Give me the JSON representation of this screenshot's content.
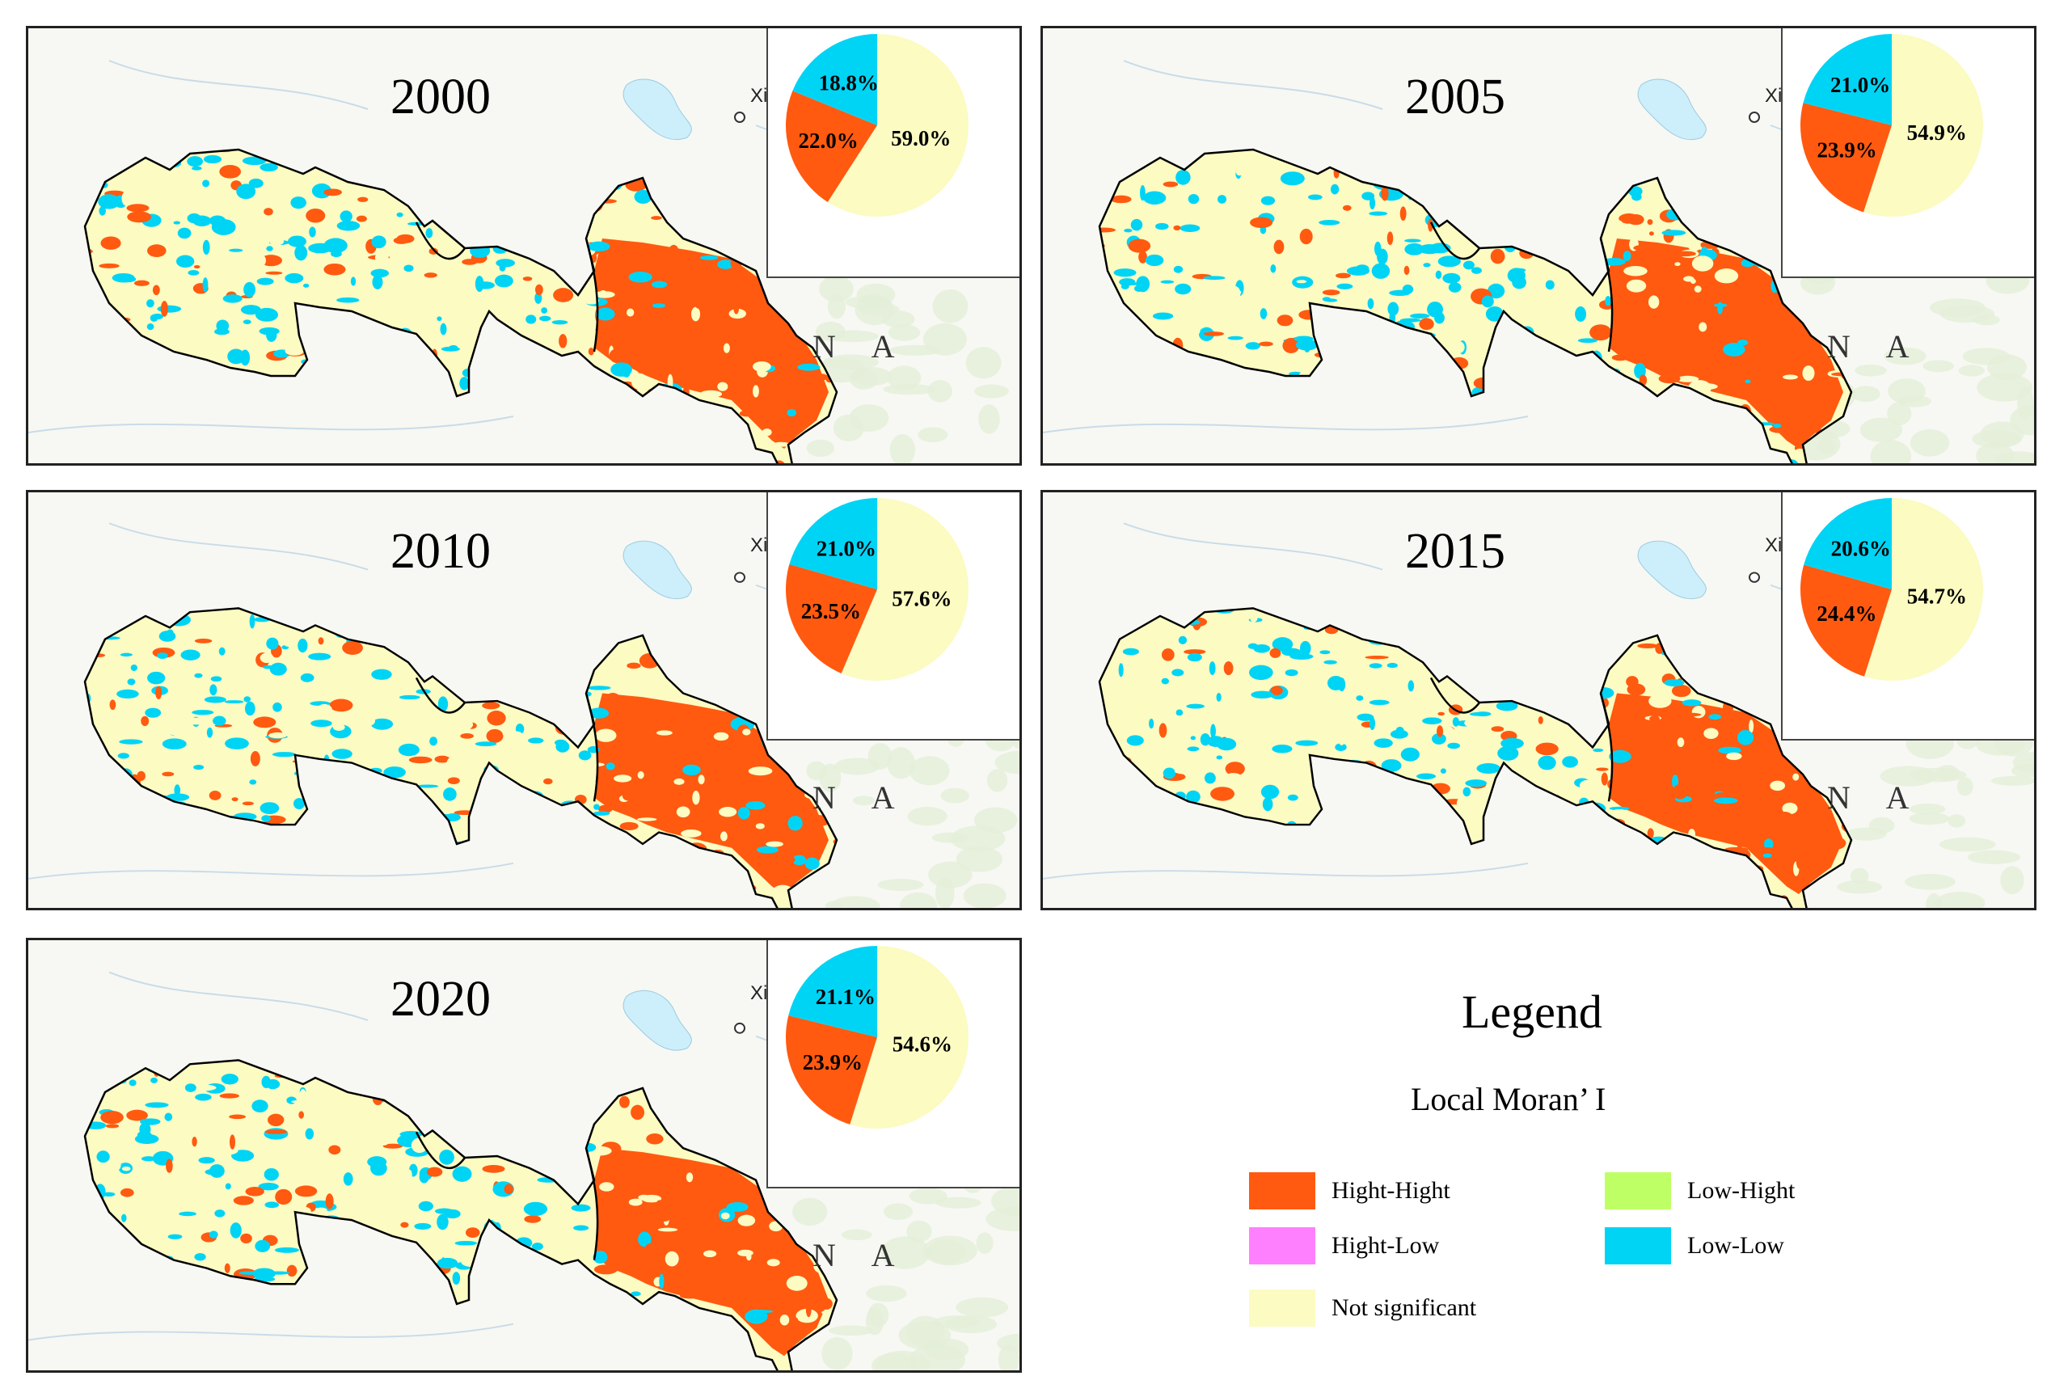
{
  "colors": {
    "hh": "#ff5a10",
    "hl": "#ff80ff",
    "lh": "#bfff66",
    "ll": "#00d4f5",
    "ns": "#fbfbc2",
    "water": "#cdeefb",
    "bg": "#f7f8f3"
  },
  "place_label": "Xini",
  "country_label": "N A",
  "panels": [
    {
      "year": "2000",
      "pie": [
        {
          "label": "59.0%",
          "value": 59.0,
          "cls": "ns"
        },
        {
          "label": "22.0%",
          "value": 22.0,
          "cls": "hh"
        },
        {
          "label": "18.8%",
          "value": 18.8,
          "cls": "ll"
        }
      ]
    },
    {
      "year": "2005",
      "pie": [
        {
          "label": "54.9%",
          "value": 54.9,
          "cls": "ns"
        },
        {
          "label": "23.9%",
          "value": 23.9,
          "cls": "hh"
        },
        {
          "label": "21.0%",
          "value": 21.0,
          "cls": "ll"
        }
      ]
    },
    {
      "year": "2010",
      "pie": [
        {
          "label": "57.6%",
          "value": 57.6,
          "cls": "ns"
        },
        {
          "label": "23.5%",
          "value": 23.5,
          "cls": "hh"
        },
        {
          "label": "21.0%",
          "value": 21.0,
          "cls": "ll"
        }
      ]
    },
    {
      "year": "2015",
      "pie": [
        {
          "label": "54.7%",
          "value": 54.7,
          "cls": "ns"
        },
        {
          "label": "24.4%",
          "value": 24.4,
          "cls": "hh"
        },
        {
          "label": "20.6%",
          "value": 20.6,
          "cls": "ll"
        }
      ]
    },
    {
      "year": "2020",
      "pie": [
        {
          "label": "54.6%",
          "value": 54.6,
          "cls": "ns"
        },
        {
          "label": "23.9%",
          "value": 23.9,
          "cls": "hh"
        },
        {
          "label": "21.1%",
          "value": 21.1,
          "cls": "ll"
        }
      ]
    }
  ],
  "legend": {
    "title": "Legend",
    "subtitle": "Local Moran’ I",
    "items": [
      {
        "label": "Hight-Hight",
        "cls": "hh"
      },
      {
        "label": "Low-Hight",
        "cls": "lh"
      },
      {
        "label": "Hight-Low",
        "cls": "hl"
      },
      {
        "label": "Low-Low",
        "cls": "ll"
      },
      {
        "label": "Not significant",
        "cls": "ns"
      }
    ]
  }
}
